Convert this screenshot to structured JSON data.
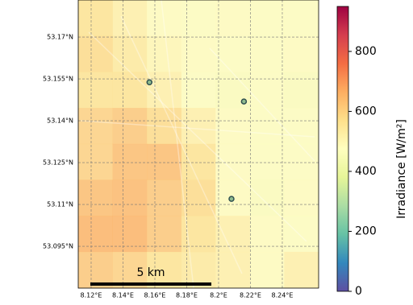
{
  "chart_data": {
    "type": "heatmap",
    "colorbar_label": "Irradiance [W/m²]",
    "scale_bar_label": "5 km",
    "colormap": [
      "#5e4fa2",
      "#3288bd",
      "#66c2a5",
      "#abdda4",
      "#e6f598",
      "#ffffbf",
      "#fee08b",
      "#fdae61",
      "#f46d43",
      "#d53e4f",
      "#9e0142"
    ],
    "clim": [
      0,
      950
    ],
    "cticks": [
      0,
      200,
      400,
      600,
      800
    ],
    "xlim": [
      8.1119,
      8.2628
    ],
    "ylim": [
      53.08,
      53.1833
    ],
    "xticks": [
      {
        "value": 8.12,
        "label": "8.12°E"
      },
      {
        "value": 8.14,
        "label": "8.14°E"
      },
      {
        "value": 8.16,
        "label": "8.16°E"
      },
      {
        "value": 8.18,
        "label": "8.18°E"
      },
      {
        "value": 8.2,
        "label": "8.2°E"
      },
      {
        "value": 8.22,
        "label": "8.22°E"
      },
      {
        "value": 8.24,
        "label": "8.24°E"
      }
    ],
    "yticks": [
      {
        "value": 53.095,
        "label": "53.095°N"
      },
      {
        "value": 53.11,
        "label": "53.11°N"
      },
      {
        "value": 53.125,
        "label": "53.125°N"
      },
      {
        "value": 53.14,
        "label": "53.14°N"
      },
      {
        "value": 53.155,
        "label": "53.155°N"
      },
      {
        "value": 53.17,
        "label": "53.17°N"
      }
    ],
    "grid": true,
    "x_edges": [
      8.1119,
      8.1335,
      8.155,
      8.1766,
      8.1981,
      8.2197,
      8.2412,
      8.2628
    ],
    "y_edges": [
      53.1833,
      53.1704,
      53.1575,
      53.1446,
      53.1317,
      53.1188,
      53.1059,
      53.093,
      53.08
    ],
    "values": [
      [
        560,
        520,
        480,
        470,
        480,
        470,
        470
      ],
      [
        580,
        540,
        500,
        480,
        470,
        470,
        480
      ],
      [
        560,
        560,
        520,
        470,
        460,
        470,
        460
      ],
      [
        600,
        620,
        580,
        520,
        480,
        470,
        470
      ],
      [
        600,
        640,
        640,
        560,
        480,
        470,
        470
      ],
      [
        640,
        650,
        620,
        580,
        480,
        460,
        480
      ],
      [
        660,
        660,
        620,
        560,
        520,
        480,
        470
      ],
      [
        620,
        600,
        560,
        540,
        520,
        480,
        520
      ]
    ],
    "points": {
      "color": "#2f4f4f",
      "x": [
        8.1566,
        8.2159,
        8.2081
      ],
      "y": [
        53.1538,
        53.1469,
        53.112
      ]
    }
  }
}
